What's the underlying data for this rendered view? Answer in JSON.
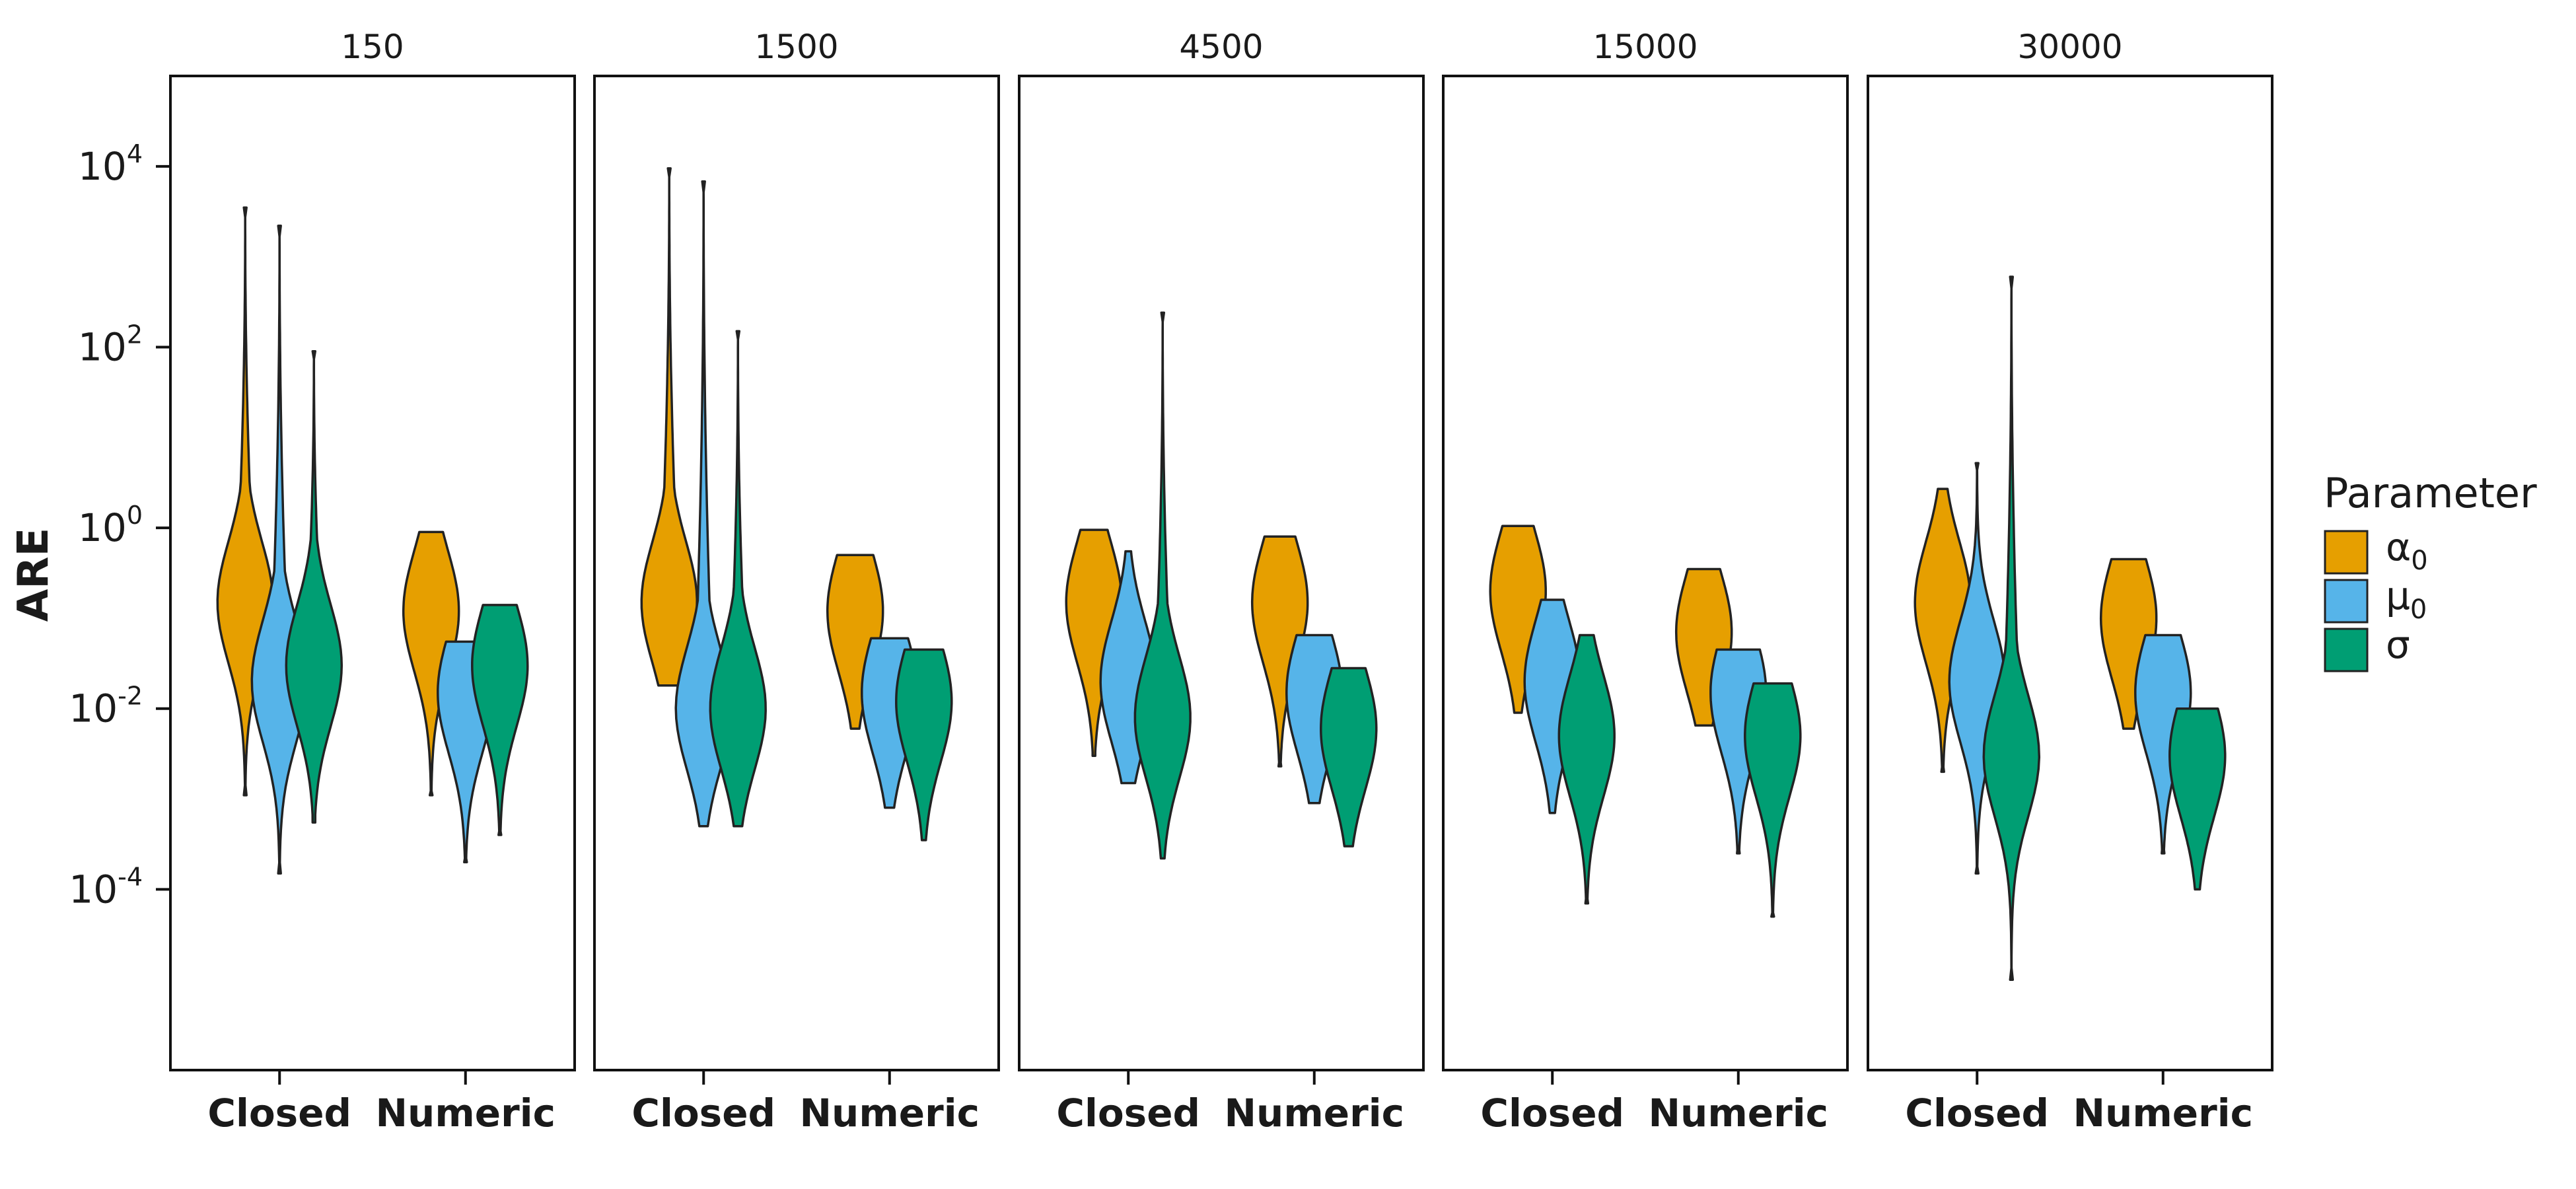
{
  "chart_data": {
    "type": "violin",
    "ylabel": "ARE",
    "yscale": "log",
    "ylim": [
      1e-06,
      100000.0
    ],
    "yticks": [
      {
        "value": 10000,
        "base": "10",
        "exp": "4"
      },
      {
        "value": 100,
        "base": "10",
        "exp": "2"
      },
      {
        "value": 1,
        "base": "10",
        "exp": "0"
      },
      {
        "value": 0.01,
        "base": "10",
        "exp": "-2"
      },
      {
        "value": 0.0001,
        "base": "10",
        "exp": "-4"
      }
    ],
    "categories": [
      "Closed",
      "Numeric"
    ],
    "legend": {
      "title": "Parameter",
      "placement": "right",
      "entries": [
        {
          "base": "α",
          "sub": "0",
          "color": "#E69F00"
        },
        {
          "base": "μ",
          "sub": "0",
          "color": "#56B4E9"
        },
        {
          "base": "σ",
          "sub": "",
          "color": "#009E73"
        }
      ]
    },
    "panels": [
      {
        "title": "150",
        "groups": [
          [
            {
              "param": 0,
              "min": 0.0011,
              "max": 3500,
              "median": 0.15,
              "color": "#E69F00"
            },
            {
              "param": 1,
              "min": 0.00015,
              "max": 2200,
              "median": 0.02,
              "color": "#56B4E9"
            },
            {
              "param": 2,
              "min": 0.00055,
              "max": 90,
              "median": 0.03,
              "color": "#009E73"
            }
          ],
          [
            {
              "param": 0,
              "min": 0.0011,
              "max": 0.9,
              "median": 0.12,
              "color": "#E69F00"
            },
            {
              "param": 1,
              "min": 0.0002,
              "max": 0.055,
              "median": 0.015,
              "color": "#56B4E9"
            },
            {
              "param": 2,
              "min": 0.0004,
              "max": 0.14,
              "median": 0.03,
              "color": "#009E73"
            }
          ]
        ]
      },
      {
        "title": "1500",
        "groups": [
          [
            {
              "param": 0,
              "min": 0.018,
              "max": 9500,
              "median": 0.15,
              "color": "#E69F00"
            },
            {
              "param": 1,
              "min": 0.0005,
              "max": 6800,
              "median": 0.01,
              "color": "#56B4E9"
            },
            {
              "param": 2,
              "min": 0.0005,
              "max": 150,
              "median": 0.01,
              "color": "#009E73"
            }
          ],
          [
            {
              "param": 0,
              "min": 0.006,
              "max": 0.5,
              "median": 0.12,
              "color": "#E69F00"
            },
            {
              "param": 1,
              "min": 0.0008,
              "max": 0.06,
              "median": 0.015,
              "color": "#56B4E9"
            },
            {
              "param": 2,
              "min": 0.00035,
              "max": 0.045,
              "median": 0.012,
              "color": "#009E73"
            }
          ]
        ]
      },
      {
        "title": "4500",
        "groups": [
          [
            {
              "param": 0,
              "min": 0.003,
              "max": 0.95,
              "median": 0.15,
              "color": "#E69F00"
            },
            {
              "param": 1,
              "min": 0.0015,
              "max": 0.55,
              "median": 0.02,
              "color": "#56B4E9"
            },
            {
              "param": 2,
              "min": 0.00022,
              "max": 240,
              "median": 0.008,
              "color": "#009E73"
            }
          ],
          [
            {
              "param": 0,
              "min": 0.0023,
              "max": 0.8,
              "median": 0.15,
              "color": "#E69F00"
            },
            {
              "param": 1,
              "min": 0.0009,
              "max": 0.065,
              "median": 0.015,
              "color": "#56B4E9"
            },
            {
              "param": 2,
              "min": 0.0003,
              "max": 0.028,
              "median": 0.006,
              "color": "#009E73"
            }
          ]
        ]
      },
      {
        "title": "15000",
        "groups": [
          [
            {
              "param": 0,
              "min": 0.009,
              "max": 1.05,
              "median": 0.2,
              "color": "#E69F00"
            },
            {
              "param": 1,
              "min": 0.0007,
              "max": 0.16,
              "median": 0.02,
              "color": "#56B4E9"
            },
            {
              "param": 2,
              "min": 7e-05,
              "max": 0.065,
              "median": 0.005,
              "color": "#009E73"
            }
          ],
          [
            {
              "param": 0,
              "min": 0.0065,
              "max": 0.35,
              "median": 0.07,
              "color": "#E69F00"
            },
            {
              "param": 1,
              "min": 0.00025,
              "max": 0.045,
              "median": 0.015,
              "color": "#56B4E9"
            },
            {
              "param": 2,
              "min": 5e-05,
              "max": 0.019,
              "median": 0.005,
              "color": "#009E73"
            }
          ]
        ]
      },
      {
        "title": "30000",
        "groups": [
          [
            {
              "param": 0,
              "min": 0.002,
              "max": 2.7,
              "median": 0.15,
              "color": "#E69F00"
            },
            {
              "param": 1,
              "min": 0.00015,
              "max": 5.2,
              "median": 0.02,
              "color": "#56B4E9"
            },
            {
              "param": 2,
              "min": 1e-05,
              "max": 600,
              "median": 0.003,
              "color": "#009E73"
            }
          ],
          [
            {
              "param": 0,
              "min": 0.006,
              "max": 0.45,
              "median": 0.1,
              "color": "#E69F00"
            },
            {
              "param": 1,
              "min": 0.00025,
              "max": 0.065,
              "median": 0.015,
              "color": "#56B4E9"
            },
            {
              "param": 2,
              "min": 0.0001,
              "max": 0.01,
              "median": 0.003,
              "color": "#009E73"
            }
          ]
        ]
      }
    ]
  }
}
